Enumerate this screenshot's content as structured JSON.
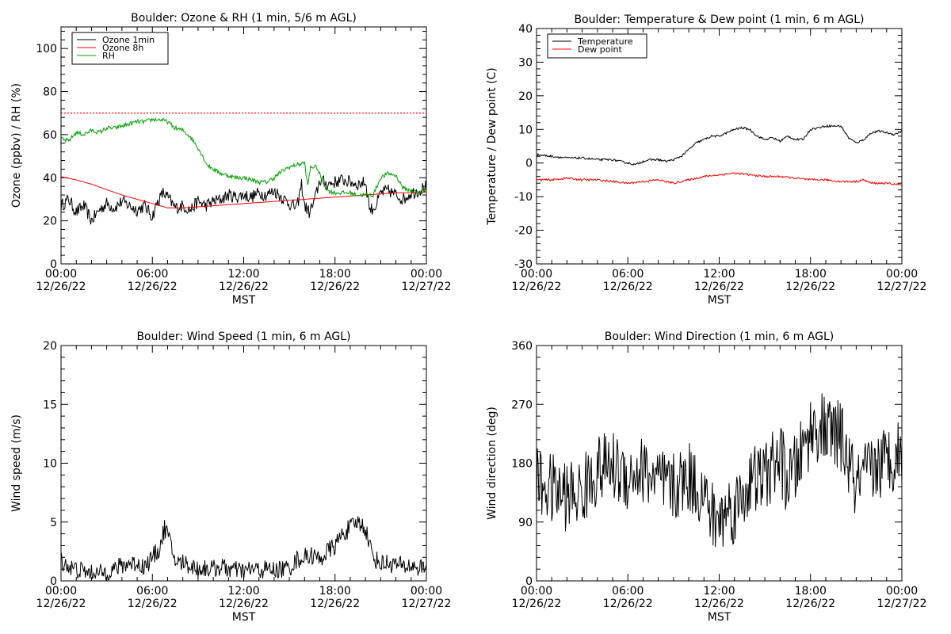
{
  "chart_data": [
    {
      "type": "line",
      "title": "Boulder: Ozone & RH (1 min, 5/6 m AGL)",
      "ylabel": "Ozone (ppbv) / RH (%)",
      "xlabel": "MST",
      "ylim": [
        0,
        110
      ],
      "yticks": [
        0,
        20,
        40,
        60,
        80,
        100
      ],
      "xlim": [
        0,
        24
      ],
      "xticks": [
        {
          "h": 0,
          "time": "00:00",
          "date": "12/26/22"
        },
        {
          "h": 6,
          "time": "06:00",
          "date": "12/26/22"
        },
        {
          "h": 12,
          "time": "12:00",
          "date": "12/26/22"
        },
        {
          "h": 18,
          "time": "18:00",
          "date": "12/26/22"
        },
        {
          "h": 24,
          "time": "00:00",
          "date": "12/27/22"
        }
      ],
      "legend_position": "top-left",
      "reference_line": {
        "y": 70,
        "color": "#ff0000",
        "style": "dotted"
      },
      "series": [
        {
          "name": "Ozone 1min",
          "color": "#000000",
          "x": [
            0,
            0.5,
            1,
            1.5,
            2,
            2.5,
            3,
            3.5,
            4,
            4.5,
            5,
            5.5,
            6,
            6.3,
            6.7,
            7,
            7.5,
            8,
            8.5,
            9,
            9.5,
            10,
            10.5,
            11,
            11.5,
            12,
            12.5,
            13,
            13.5,
            14,
            14.5,
            15,
            15.5,
            15.8,
            16,
            16.3,
            16.6,
            17,
            17.5,
            18,
            18.5,
            19,
            19.5,
            20,
            20.3,
            20.7,
            21,
            21.5,
            22,
            22.5,
            23,
            23.5,
            24
          ],
          "y": [
            27,
            30,
            24,
            27,
            20,
            25,
            28,
            26,
            29,
            27,
            25,
            27,
            22,
            28,
            33,
            31,
            26,
            27,
            25,
            29,
            27,
            29,
            30,
            32,
            31,
            32,
            31,
            33,
            32,
            34,
            31,
            28,
            26,
            37,
            27,
            24,
            28,
            39,
            37,
            38,
            39,
            38,
            37,
            38,
            25,
            27,
            33,
            34,
            32,
            30,
            33,
            34,
            36
          ],
          "noise": 3
        },
        {
          "name": "Ozone 8h",
          "color": "#ff0000",
          "x": [
            0,
            1,
            2,
            3,
            4,
            5,
            6,
            6.5,
            7,
            8,
            9,
            10,
            11,
            12,
            13,
            14,
            15,
            16,
            17,
            18,
            19,
            20,
            21,
            22,
            23,
            24
          ],
          "y": [
            40.5,
            39,
            37,
            34.5,
            32,
            30,
            28,
            27,
            26,
            26,
            26.5,
            27,
            27.5,
            28,
            28.5,
            29,
            29.5,
            30,
            30.5,
            31,
            31.5,
            32,
            32.5,
            33,
            33,
            33.5
          ]
        },
        {
          "name": "RH",
          "color": "#00a000",
          "x": [
            0,
            0.5,
            1,
            1.5,
            2,
            2.5,
            3,
            3.5,
            4,
            4.5,
            5,
            5.5,
            6,
            6.5,
            7,
            7.5,
            8,
            8.5,
            9,
            9.3,
            9.6,
            10,
            10.5,
            11,
            11.5,
            12,
            12.5,
            13,
            13.5,
            14,
            14.5,
            15,
            15.5,
            16,
            16.2,
            16.4,
            16.8,
            17.2,
            17.5,
            18,
            18.5,
            19,
            19.5,
            20,
            20.5,
            21,
            21.5,
            22,
            22.5,
            23,
            23.5,
            24
          ],
          "y": [
            58,
            57,
            61,
            60,
            62,
            61,
            63,
            63,
            64,
            65,
            66,
            66,
            67,
            67,
            66,
            63,
            62,
            59,
            54,
            50,
            46,
            44,
            42,
            41,
            40,
            40,
            39,
            38,
            38,
            40,
            43,
            45,
            46,
            47,
            36,
            45,
            45,
            38,
            34,
            33,
            33,
            33,
            32,
            32,
            32,
            40,
            42,
            41,
            35,
            34,
            33,
            35
          ],
          "noise": 1
        }
      ]
    },
    {
      "type": "line",
      "title": "Boulder: Temperature & Dew point (1 min, 6 m AGL)",
      "ylabel": "Temperature / Dew point (C)",
      "xlabel": "MST",
      "ylim": [
        -30,
        40
      ],
      "yticks": [
        -30,
        -20,
        -10,
        0,
        10,
        20,
        30,
        40
      ],
      "xlim": [
        0,
        24
      ],
      "xticks": [
        {
          "h": 0,
          "time": "00:00",
          "date": "12/26/22"
        },
        {
          "h": 6,
          "time": "06:00",
          "date": "12/26/22"
        },
        {
          "h": 12,
          "time": "12:00",
          "date": "12/26/22"
        },
        {
          "h": 18,
          "time": "18:00",
          "date": "12/26/22"
        },
        {
          "h": 24,
          "time": "00:00",
          "date": "12/27/22"
        }
      ],
      "legend_position": "top-left",
      "series": [
        {
          "name": "Temperature",
          "color": "#000000",
          "x": [
            0,
            1,
            2,
            3,
            4,
            5,
            6,
            6.5,
            7,
            7.5,
            8,
            8.5,
            9,
            9.5,
            10,
            10.5,
            11,
            11.5,
            12,
            12.5,
            13,
            13.5,
            14,
            14.5,
            15,
            15.5,
            16,
            16.5,
            17,
            17.5,
            18,
            18.5,
            19,
            19.5,
            20,
            20.5,
            21,
            21.5,
            22,
            22.5,
            23,
            23.5,
            24
          ],
          "y": [
            2.5,
            2,
            1.5,
            1.5,
            1,
            1,
            0,
            -0.5,
            0.5,
            1,
            1,
            0.5,
            1,
            2,
            4,
            6,
            7,
            8,
            8,
            9,
            10,
            10.5,
            10,
            8,
            7,
            7.5,
            6.5,
            8,
            7,
            7,
            10,
            10.5,
            11,
            11,
            11,
            7.5,
            6,
            7,
            9,
            9.5,
            9,
            8.5,
            9.5
          ],
          "noise": 0.3
        },
        {
          "name": "Dew point",
          "color": "#ff0000",
          "x": [
            0,
            1,
            2,
            3,
            4,
            5,
            6,
            7,
            8,
            9,
            10,
            11,
            12,
            13,
            14,
            15,
            16,
            17,
            18,
            19,
            20,
            21,
            21.5,
            22,
            23,
            24
          ],
          "y": [
            -5,
            -5,
            -4.5,
            -5,
            -5,
            -5.5,
            -6,
            -5.5,
            -5,
            -6,
            -5,
            -4,
            -3.5,
            -3,
            -3.5,
            -4,
            -4,
            -4.5,
            -5,
            -5,
            -5.5,
            -5.5,
            -5,
            -6,
            -6,
            -6.5
          ],
          "noise": 0.3
        }
      ]
    },
    {
      "type": "line",
      "title": "Boulder: Wind Speed (1 min, 6 m AGL)",
      "ylabel": "Wind speed (m/s)",
      "xlabel": "MST",
      "ylim": [
        0,
        20
      ],
      "yticks": [
        0,
        5,
        10,
        15,
        20
      ],
      "xlim": [
        0,
        24
      ],
      "xticks": [
        {
          "h": 0,
          "time": "00:00",
          "date": "12/26/22"
        },
        {
          "h": 6,
          "time": "06:00",
          "date": "12/26/22"
        },
        {
          "h": 12,
          "time": "12:00",
          "date": "12/26/22"
        },
        {
          "h": 18,
          "time": "18:00",
          "date": "12/26/22"
        },
        {
          "h": 24,
          "time": "00:00",
          "date": "12/27/22"
        }
      ],
      "series": [
        {
          "name": "",
          "color": "#000000",
          "x": [
            0,
            0.5,
            1,
            1.5,
            2,
            2.5,
            3,
            3.5,
            4,
            4.5,
            5,
            5.5,
            6,
            6.5,
            6.8,
            7,
            7.3,
            7.6,
            8,
            8.5,
            9,
            9.5,
            10,
            10.5,
            11,
            11.5,
            12,
            12.5,
            13,
            13.5,
            14,
            14.5,
            15,
            15.5,
            16,
            16.5,
            17,
            17.5,
            18,
            18.5,
            19,
            19.5,
            20,
            20.5,
            21,
            21.5,
            22,
            22.5,
            23,
            23.5,
            24
          ],
          "y": [
            1.8,
            1.2,
            1,
            0.8,
            0.6,
            0.6,
            0.8,
            1,
            1.3,
            1.5,
            1.5,
            1.2,
            2,
            2.8,
            4.5,
            4,
            2.5,
            1.5,
            1.6,
            1.3,
            1,
            1.1,
            1,
            1.2,
            1,
            0.9,
            0.8,
            1,
            0.9,
            1,
            0.9,
            1,
            1.1,
            1.8,
            2,
            2.2,
            1.8,
            2.5,
            3,
            4,
            4.5,
            5,
            4.5,
            2,
            1.5,
            1.5,
            1.4,
            1.2,
            1.3,
            1.1,
            1.2
          ],
          "noise": 0.8
        }
      ]
    },
    {
      "type": "line",
      "title": "Boulder: Wind Direction (1 min, 6 m AGL)",
      "ylabel": "Wind direction (deg)",
      "xlabel": "MST",
      "ylim": [
        0,
        360
      ],
      "yticks": [
        0,
        90,
        180,
        270,
        360
      ],
      "xlim": [
        0,
        24
      ],
      "xticks": [
        {
          "h": 0,
          "time": "00:00",
          "date": "12/26/22"
        },
        {
          "h": 6,
          "time": "06:00",
          "date": "12/26/22"
        },
        {
          "h": 12,
          "time": "12:00",
          "date": "12/26/22"
        },
        {
          "h": 18,
          "time": "18:00",
          "date": "12/26/22"
        },
        {
          "h": 24,
          "time": "00:00",
          "date": "12/27/22"
        }
      ],
      "series": [
        {
          "name": "",
          "color": "#000000",
          "x": [
            0,
            1,
            2,
            3,
            4,
            5,
            6,
            7,
            8,
            9,
            10,
            11,
            11.5,
            12,
            12.5,
            13,
            14,
            15,
            16,
            16.5,
            17,
            17.5,
            18,
            18.5,
            19,
            19.5,
            20,
            20.5,
            21,
            22,
            23,
            24
          ],
          "y": [
            150,
            140,
            130,
            135,
            170,
            175,
            160,
            170,
            150,
            140,
            160,
            130,
            100,
            90,
            110,
            110,
            150,
            160,
            190,
            150,
            170,
            200,
            230,
            235,
            230,
            225,
            220,
            180,
            140,
            170,
            185,
            200
          ],
          "noise": 55
        }
      ]
    }
  ]
}
